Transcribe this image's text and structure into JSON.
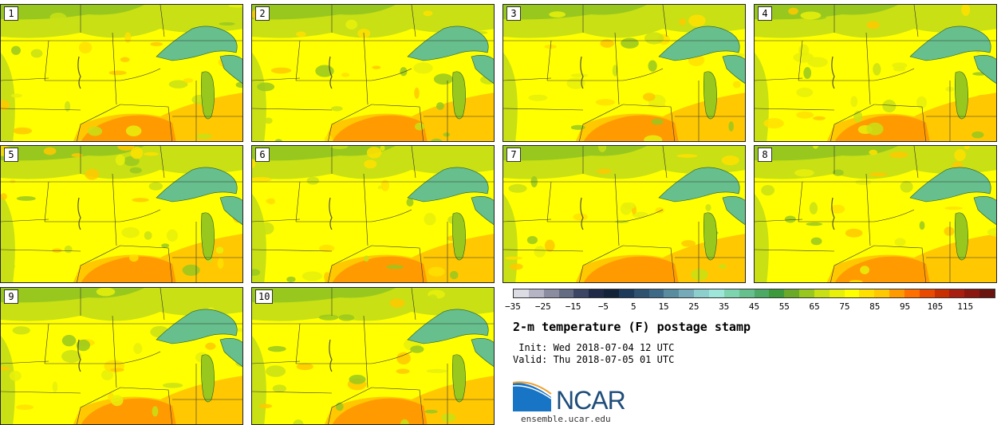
{
  "panels": [
    {
      "label": "1"
    },
    {
      "label": "2"
    },
    {
      "label": "3"
    },
    {
      "label": "4"
    },
    {
      "label": "5"
    },
    {
      "label": "6"
    },
    {
      "label": "7"
    },
    {
      "label": "8"
    },
    {
      "label": "9"
    },
    {
      "label": "10"
    }
  ],
  "colorbar": {
    "colors": [
      "#dcdce4",
      "#b4b4c4",
      "#8c8ca0",
      "#646c84",
      "#3c4664",
      "#1e2a48",
      "#122238",
      "#1e3a5a",
      "#2e5270",
      "#3e6a88",
      "#5a8ca0",
      "#76aab8",
      "#8ccfcc",
      "#9ee6da",
      "#7fd4b0",
      "#66bf8c",
      "#4caa66",
      "#3c9a3c",
      "#6aaa28",
      "#98c81e",
      "#c8e014",
      "#e8f00a",
      "#ffff00",
      "#ffe000",
      "#ffc800",
      "#ff9a00",
      "#ff7000",
      "#e84a00",
      "#c83000",
      "#a81e10",
      "#8a1810",
      "#6a1410"
    ],
    "tick_labels": [
      "−35",
      "−25",
      "−15",
      "−5",
      "5",
      "15",
      "25",
      "35",
      "45",
      "55",
      "65",
      "75",
      "85",
      "95",
      "105",
      "115"
    ]
  },
  "title": "2-m temperature (F) postage stamp",
  "init": " Init: Wed 2018-07-04 12 UTC",
  "valid": "Valid: Thu 2018-07-05 01 UTC",
  "logo": {
    "name": "NCAR",
    "url": "ensemble.ucar.edu"
  }
}
